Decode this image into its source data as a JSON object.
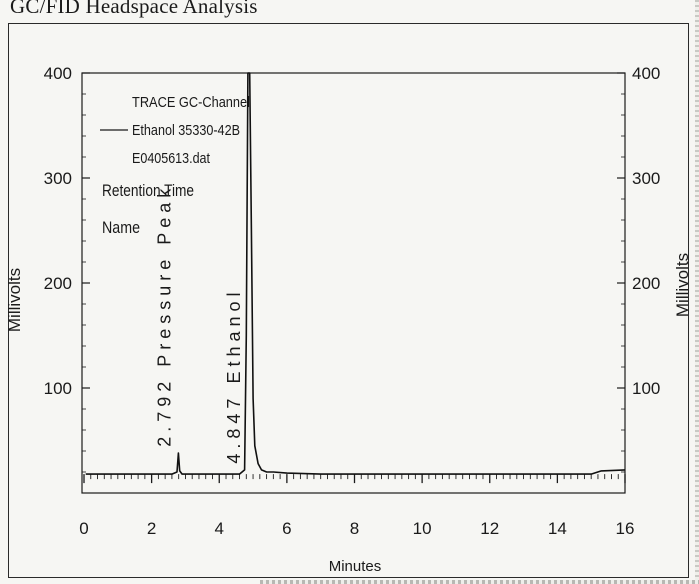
{
  "page_title": "GC/FID Headspace Analysis",
  "chart_data": {
    "type": "line",
    "xlabel": "Minutes",
    "ylabel_left": "Millivolts",
    "ylabel_right": "Millivolts",
    "xlim": [
      0,
      16
    ],
    "ylim": [
      0,
      400
    ],
    "x_ticks": [
      "0",
      "2",
      "4",
      "6",
      "8",
      "10",
      "12",
      "14",
      "16"
    ],
    "y_ticks_left": [
      "100",
      "200",
      "300",
      "400"
    ],
    "y_ticks_right": [
      "100",
      "200",
      "300",
      "400"
    ],
    "legend": {
      "channel": "TRACE GC-Channel",
      "series_label": "Ethanol 35330-42B",
      "file": "E0405613.dat"
    },
    "annotation_header": [
      "Retention Time",
      "Name"
    ],
    "peaks": [
      {
        "retention_time": "2.792",
        "name": "Pressure Peak",
        "height": 38
      },
      {
        "retention_time": "4.847",
        "name": "Ethanol",
        "height": 400
      }
    ],
    "series": [
      {
        "name": "Ethanol 35330-42B",
        "x": [
          0.05,
          1.0,
          2.0,
          2.6,
          2.75,
          2.792,
          2.83,
          2.9,
          3.2,
          4.0,
          4.6,
          4.75,
          4.8,
          4.847,
          4.9,
          4.95,
          5.0,
          5.05,
          5.15,
          5.25,
          5.4,
          5.6,
          6.0,
          7.0,
          10.0,
          13.0,
          15.0,
          15.3,
          16.0
        ],
        "y": [
          18,
          18,
          18,
          18,
          20,
          38,
          21,
          18,
          18,
          18,
          18,
          22,
          150,
          400,
          400,
          250,
          90,
          45,
          28,
          22,
          20,
          20,
          19,
          18,
          18,
          18,
          18,
          21,
          22
        ]
      }
    ]
  }
}
